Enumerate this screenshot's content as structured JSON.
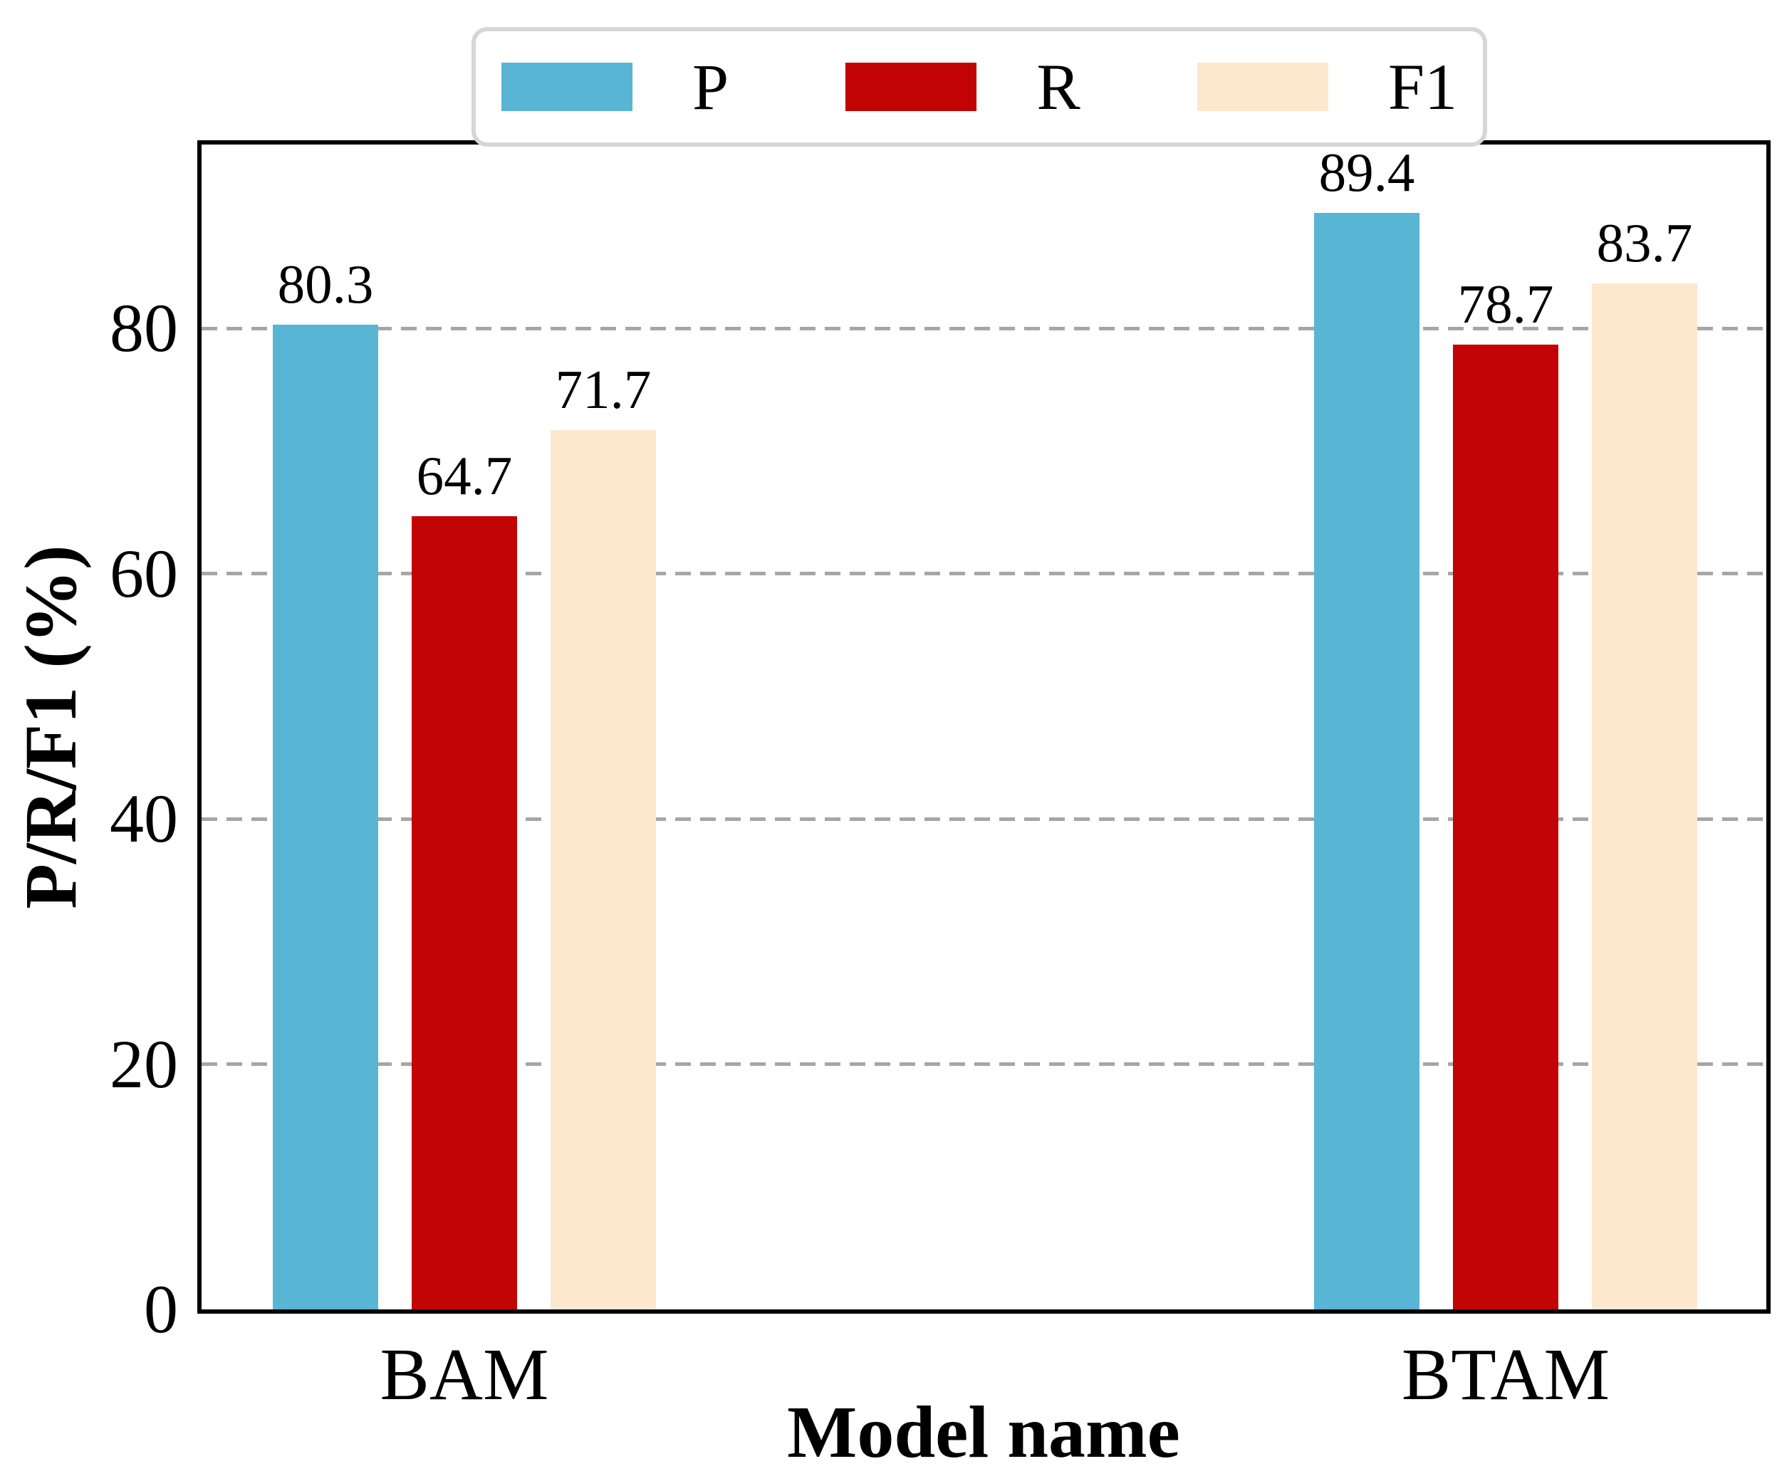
{
  "chart_data": {
    "type": "bar",
    "title": "",
    "categories": [
      "BAM",
      "BTAM"
    ],
    "series": [
      {
        "name": "P",
        "color": "#58b5d3",
        "values": [
          80.3,
          89.4
        ]
      },
      {
        "name": "R",
        "color": "#c30404",
        "values": [
          64.7,
          78.7
        ]
      },
      {
        "name": "F1",
        "color": "#fde8ce",
        "values": [
          71.7,
          83.7
        ]
      }
    ],
    "xlabel": "Model name",
    "ylabel": "P/R/F1 (%)",
    "ylim": [
      0,
      95
    ],
    "yticks": [
      0,
      20,
      40,
      60,
      80
    ],
    "grid": "horizontal dashed at yticks",
    "legend_position": "upper center",
    "bar_labels": "value with one decimal above each bar"
  },
  "styles": {
    "background": "#ffffff",
    "spine_color": "#000000",
    "grid_color": "#a6a6a6",
    "legend_border_color": "#d6d6d6",
    "text_color": "#000000"
  }
}
